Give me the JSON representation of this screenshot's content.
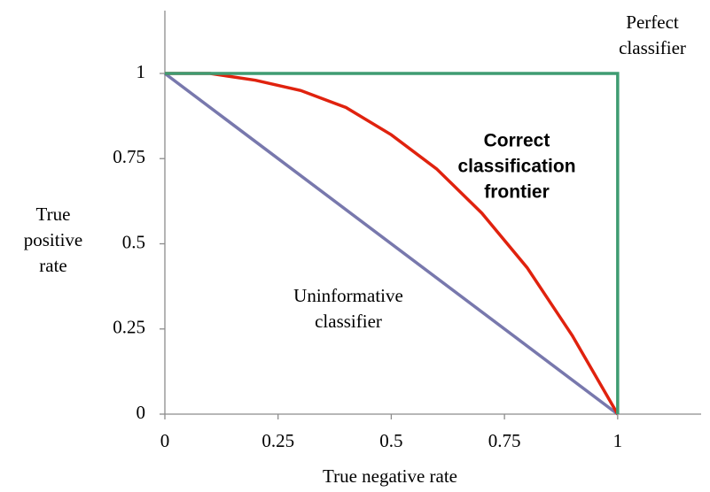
{
  "chart_data": {
    "type": "line",
    "x_label": "True negative rate",
    "y_label": [
      "True",
      "positive",
      "rate"
    ],
    "xlim": [
      0,
      1.2
    ],
    "ylim": [
      0,
      1.2
    ],
    "xticks": [
      0,
      0.25,
      0.5,
      0.75,
      1
    ],
    "yticks": [
      0,
      0.25,
      0.5,
      0.75,
      1
    ],
    "series": [
      {
        "label": [
          "Perfect",
          "classifier"
        ],
        "color": "#3f9c72",
        "x": [
          0,
          1,
          1
        ],
        "values": [
          1,
          1,
          0
        ]
      },
      {
        "label": [
          "Uninformative",
          "classifier"
        ],
        "color": "#7878ad",
        "x": [
          0,
          1
        ],
        "values": [
          1,
          0
        ]
      },
      {
        "label": [
          "Correct",
          "classification",
          "frontier"
        ],
        "bold": true,
        "color": "#e0220e",
        "x": [
          0,
          0.1,
          0.2,
          0.3,
          0.4,
          0.5,
          0.6,
          0.7,
          0.8,
          0.9,
          1
        ],
        "values": [
          1,
          1,
          0.98,
          0.95,
          0.9,
          0.82,
          0.72,
          0.59,
          0.43,
          0.23,
          0
        ]
      }
    ]
  }
}
